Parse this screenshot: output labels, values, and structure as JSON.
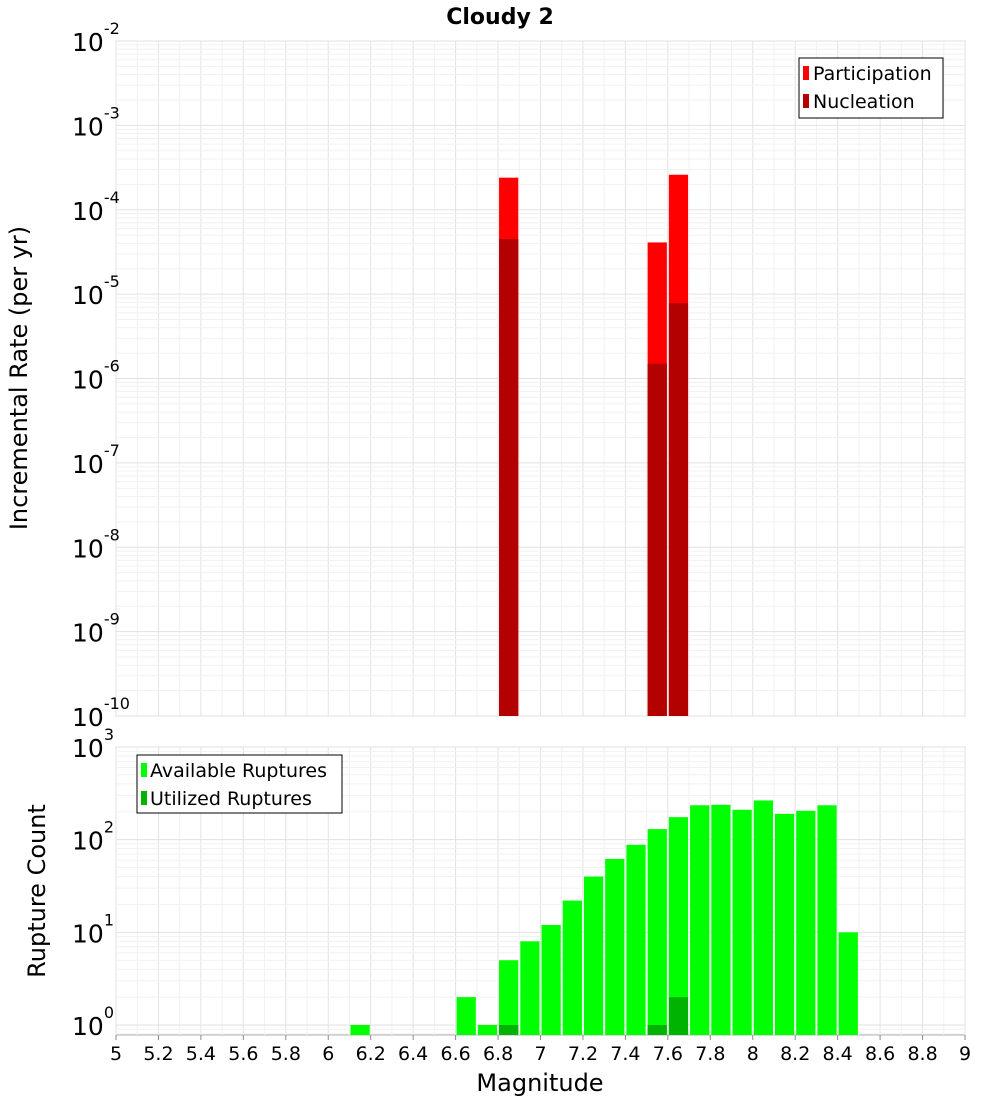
{
  "chart_data": [
    {
      "type": "bar",
      "title": "Cloudy 2",
      "xlabel": "",
      "ylabel": "Incremental Rate (per yr)",
      "xlim": [
        5,
        9
      ],
      "ylim": [
        1e-10,
        0.01
      ],
      "yscale": "log",
      "grid": true,
      "bar_width": 0.1,
      "legend_position": "top-right",
      "y_ticks": [
        {
          "exp": "-10",
          "value": 1e-10
        },
        {
          "exp": "-9",
          "value": 1e-09
        },
        {
          "exp": "-8",
          "value": 1e-08
        },
        {
          "exp": "-7",
          "value": 1e-07
        },
        {
          "exp": "-6",
          "value": 1e-06
        },
        {
          "exp": "-5",
          "value": 1e-05
        },
        {
          "exp": "-4",
          "value": 0.0001
        },
        {
          "exp": "-3",
          "value": 0.001
        },
        {
          "exp": "-2",
          "value": 0.01
        }
      ],
      "series": [
        {
          "name": "Participation",
          "color": "#ff0000",
          "points": [
            {
              "x": 6.85,
              "y": 0.00024
            },
            {
              "x": 7.55,
              "y": 4.1e-05
            },
            {
              "x": 7.65,
              "y": 0.00026
            }
          ]
        },
        {
          "name": "Nucleation",
          "color": "#b30000",
          "points": [
            {
              "x": 6.85,
              "y": 4.5e-05
            },
            {
              "x": 7.55,
              "y": 1.5e-06
            },
            {
              "x": 7.65,
              "y": 7.8e-06
            }
          ]
        }
      ]
    },
    {
      "type": "bar",
      "title": "",
      "xlabel": "Magnitude",
      "ylabel": "Rupture Count",
      "xlim": [
        5,
        9
      ],
      "ylim": [
        0.78,
        1000
      ],
      "yscale": "log",
      "grid": true,
      "bar_width": 0.1,
      "legend_position": "top-left",
      "x_ticks": [
        "5",
        "5.2",
        "5.4",
        "5.6",
        "5.8",
        "6",
        "6.2",
        "6.4",
        "6.6",
        "6.8",
        "7",
        "7.2",
        "7.4",
        "7.6",
        "7.8",
        "8",
        "8.2",
        "8.4",
        "8.6",
        "8.8",
        "9"
      ],
      "y_ticks": [
        {
          "exp": "0",
          "value": 1
        },
        {
          "exp": "1",
          "value": 10
        },
        {
          "exp": "2",
          "value": 100
        },
        {
          "exp": "3",
          "value": 1000
        }
      ],
      "series": [
        {
          "name": "Available Ruptures",
          "color": "#00ff00",
          "points": [
            {
              "x": 6.15,
              "y": 1
            },
            {
              "x": 6.65,
              "y": 2
            },
            {
              "x": 6.75,
              "y": 1
            },
            {
              "x": 6.85,
              "y": 5
            },
            {
              "x": 6.95,
              "y": 8
            },
            {
              "x": 7.05,
              "y": 12
            },
            {
              "x": 7.15,
              "y": 22
            },
            {
              "x": 7.25,
              "y": 40
            },
            {
              "x": 7.35,
              "y": 62
            },
            {
              "x": 7.45,
              "y": 88
            },
            {
              "x": 7.55,
              "y": 130
            },
            {
              "x": 7.65,
              "y": 175
            },
            {
              "x": 7.75,
              "y": 235
            },
            {
              "x": 7.85,
              "y": 238
            },
            {
              "x": 7.95,
              "y": 210
            },
            {
              "x": 8.05,
              "y": 265
            },
            {
              "x": 8.15,
              "y": 190
            },
            {
              "x": 8.25,
              "y": 205
            },
            {
              "x": 8.35,
              "y": 235
            },
            {
              "x": 8.45,
              "y": 10
            }
          ]
        },
        {
          "name": "Utilized Ruptures",
          "color": "#00b300",
          "points": [
            {
              "x": 6.85,
              "y": 1
            },
            {
              "x": 7.55,
              "y": 1
            },
            {
              "x": 7.65,
              "y": 2
            }
          ]
        }
      ]
    }
  ]
}
